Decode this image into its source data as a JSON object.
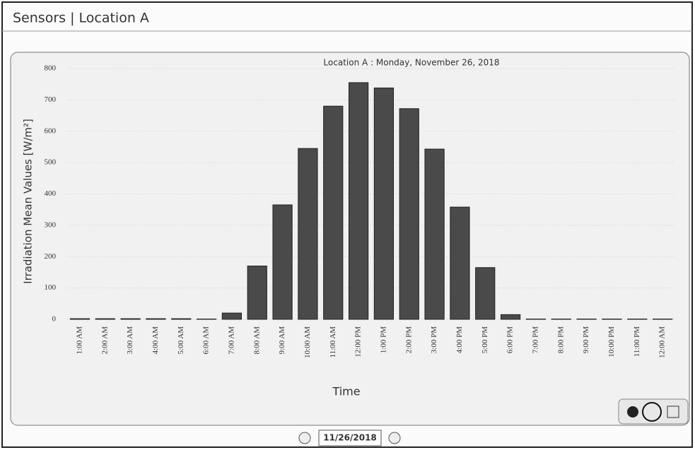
{
  "header": {
    "title": "Sensors | Location A"
  },
  "chart_data": {
    "type": "bar",
    "title": "Location A  : Monday, November 26, 2018",
    "ylabel": "Irradiation Mean Values [W/m²]",
    "xlabel": "Time",
    "categories": [
      "1:00 AM",
      "2:00 AM",
      "3:00 AM",
      "4:00 AM",
      "5:00 AM",
      "6:00 AM",
      "7:00 AM",
      "8:00 AM",
      "9:00 AM",
      "10:00 AM",
      "11:00 AM",
      "12:00 PM",
      "1:00 PM",
      "2:00 PM",
      "3:00 PM",
      "4:00 PM",
      "5:00 PM",
      "6:00 PM",
      "7:00 PM",
      "8:00 PM",
      "9:00 PM",
      "10:00 PM",
      "11:00 PM",
      "12:00 AM"
    ],
    "values": [
      2,
      2,
      2,
      2,
      2,
      1,
      20,
      170,
      365,
      545,
      680,
      755,
      738,
      672,
      543,
      358,
      165,
      15,
      1,
      1,
      1,
      1,
      1,
      1
    ],
    "color": "#4a4a4a",
    "ylim": [
      0,
      800
    ],
    "yticks": [
      0,
      100,
      200,
      300,
      400,
      500,
      600,
      700,
      800
    ],
    "grid": true
  },
  "footer": {
    "date": "11/26/2018"
  }
}
